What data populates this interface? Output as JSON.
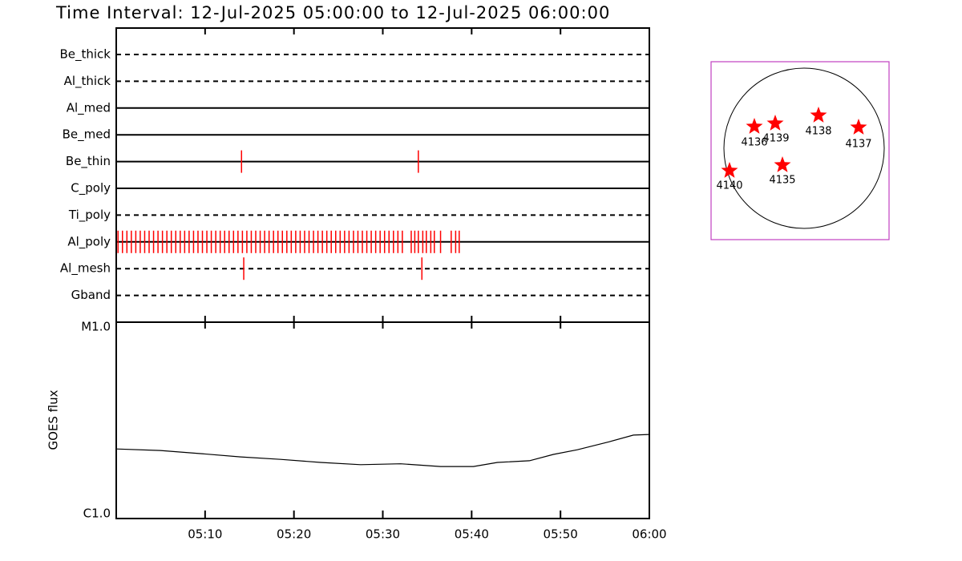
{
  "title": "Time Interval: 12-Jul-2025 05:00:00 to 12-Jul-2025 06:00:00",
  "chart_data": [
    {
      "type": "timeline",
      "rows": [
        {
          "name": "Be_thick",
          "style": "dashed",
          "events": []
        },
        {
          "name": "Al_thick",
          "style": "dashed",
          "events": []
        },
        {
          "name": "Al_med",
          "style": "solid",
          "events": []
        },
        {
          "name": "Be_med",
          "style": "solid",
          "events": []
        },
        {
          "name": "Be_thin",
          "style": "solid",
          "events": [
            14.1,
            34.0
          ]
        },
        {
          "name": "C_poly",
          "style": "solid",
          "events": []
        },
        {
          "name": "Ti_poly",
          "style": "dashed",
          "events": []
        },
        {
          "name": "Al_poly",
          "style": "solid",
          "events": [
            0.2,
            0.7,
            1.2,
            1.7,
            2.2,
            2.7,
            3.2,
            3.7,
            4.2,
            4.7,
            5.2,
            5.7,
            6.2,
            6.7,
            7.2,
            7.7,
            8.2,
            8.7,
            9.2,
            9.7,
            10.2,
            10.7,
            11.2,
            11.7,
            12.2,
            12.7,
            13.2,
            13.7,
            14.2,
            14.7,
            15.2,
            15.7,
            16.2,
            16.7,
            17.2,
            17.7,
            18.2,
            18.7,
            19.2,
            19.7,
            20.2,
            20.7,
            21.2,
            21.7,
            22.2,
            22.7,
            23.2,
            23.7,
            24.2,
            24.7,
            25.2,
            25.7,
            26.2,
            26.7,
            27.2,
            27.7,
            28.2,
            28.7,
            29.2,
            29.7,
            30.2,
            30.7,
            31.2,
            31.7,
            32.2,
            33.2,
            33.6,
            34.0,
            34.5,
            34.9,
            35.4,
            35.8,
            36.5,
            37.7,
            38.2,
            38.6
          ]
        },
        {
          "name": "Al_mesh",
          "style": "dashed",
          "events": [
            14.35,
            34.4
          ]
        },
        {
          "name": "Gband",
          "style": "dashed",
          "events": []
        }
      ],
      "color": "#ff0000"
    },
    {
      "type": "line",
      "ylabel": "GOES flux",
      "x": [
        0,
        4.96,
        9.47,
        13.99,
        18.5,
        23.0,
        27.5,
        32.0,
        36.5,
        40.2,
        42.9,
        46.5,
        49.2,
        51.9,
        55.5,
        58.2,
        60
      ],
      "values": [
        2.26e-06,
        2.22e-06,
        2.14e-06,
        2.06e-06,
        2e-06,
        1.93e-06,
        1.88e-06,
        1.9e-06,
        1.84e-06,
        1.84e-06,
        1.93e-06,
        1.97e-06,
        2.12e-06,
        2.24e-06,
        2.46e-06,
        2.66e-06,
        2.68e-06
      ],
      "color": "#000000",
      "xlim": [
        0,
        60
      ],
      "xticks": [
        {
          "value": 10,
          "label": "05:10"
        },
        {
          "value": 20,
          "label": "05:20"
        },
        {
          "value": 30,
          "label": "05:30"
        },
        {
          "value": 40,
          "label": "05:40"
        },
        {
          "value": 50,
          "label": "05:50"
        },
        {
          "value": 60,
          "label": "06:00"
        }
      ],
      "ylim": [
        1e-06,
        1e-05
      ],
      "yticks": [
        {
          "value": 1e-06,
          "label": "C1.0"
        },
        {
          "value": 1e-05,
          "label": "M1.0"
        }
      ],
      "log_y": true
    }
  ],
  "sun_map": {
    "regions": [
      "4136",
      "4139",
      "4138",
      "4137",
      "4140",
      "4135"
    ],
    "color": "#ff0000",
    "frame_color": "#c040c0"
  }
}
